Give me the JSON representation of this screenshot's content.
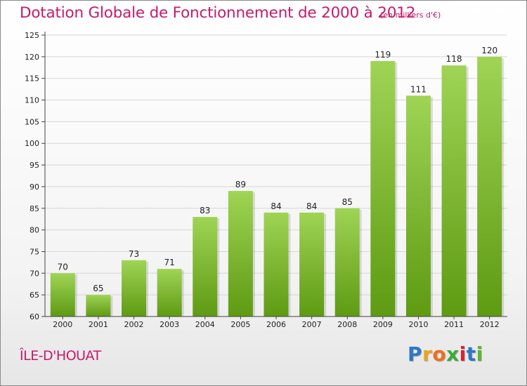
{
  "header": {
    "title": "Dotation Globale de Fonctionnement de 2000 à 2012",
    "unit": "(en milliers d'€)"
  },
  "commune": "ÎLE-D'HOUAT",
  "logo": {
    "letters": [
      "P",
      "r",
      "o",
      "x",
      "i",
      "t",
      "i"
    ],
    "colors": [
      "#2d77c7",
      "#f0a21b",
      "#ee6f1a",
      "#3daa3a",
      "#d9232e",
      "#2d77c7",
      "#5bb531"
    ]
  },
  "colors": {
    "bar_top": "#9fd455",
    "bar_bottom": "#5e9a12",
    "grid": "#d6d6d6",
    "axis": "#444444",
    "text": "#222222"
  },
  "chart_data": {
    "type": "bar",
    "categories": [
      "2000",
      "2001",
      "2002",
      "2003",
      "2004",
      "2005",
      "2006",
      "2007",
      "2008",
      "2009",
      "2010",
      "2011",
      "2012"
    ],
    "values": [
      70,
      65,
      73,
      71,
      83,
      89,
      84,
      84,
      85,
      119,
      111,
      118,
      120
    ],
    "title": "Dotation Globale de Fonctionnement de 2000 à 2012",
    "xlabel": "",
    "ylabel": "",
    "ylim": [
      60,
      125
    ],
    "yticks": [
      60,
      65,
      70,
      75,
      80,
      85,
      90,
      95,
      100,
      105,
      110,
      115,
      120,
      125
    ],
    "grid": true
  }
}
